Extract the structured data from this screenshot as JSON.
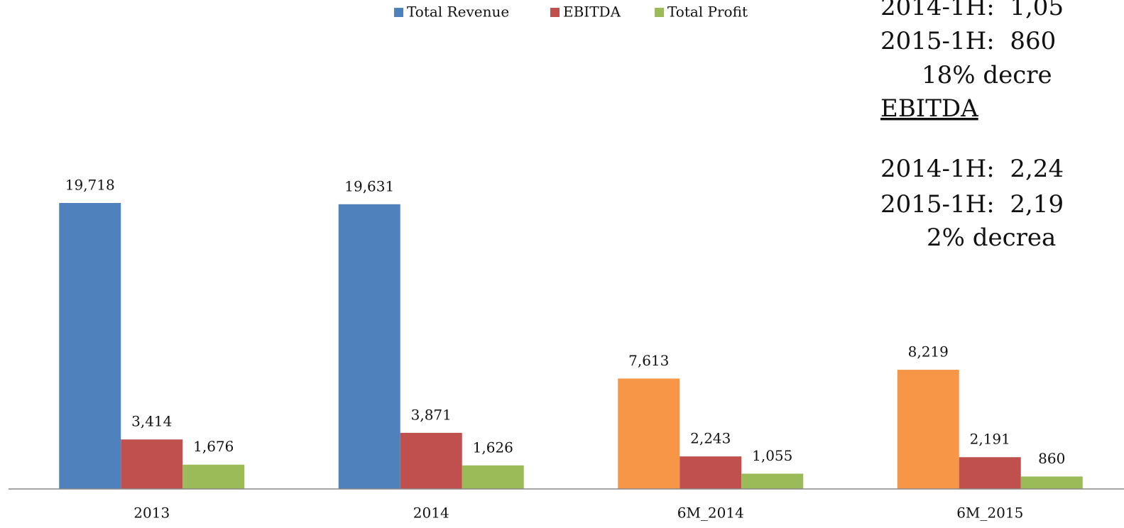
{
  "chart_data": {
    "type": "bar",
    "categories": [
      "2013",
      "2014",
      "6M_2014",
      "6M_2015"
    ],
    "series": [
      {
        "name": "Total Revenue",
        "color": "#4f81bd",
        "colors": [
          "#4f81bd",
          "#4f81bd",
          "#f79646",
          "#f79646"
        ],
        "values": [
          19718,
          19631,
          7613,
          8219
        ],
        "value_labels": [
          "19,718",
          "19,631",
          "7,613",
          "8,219"
        ]
      },
      {
        "name": "EBITDA",
        "color": "#c0504d",
        "values": [
          3414,
          3871,
          2243,
          2191
        ],
        "value_labels": [
          "3,414",
          "3,871",
          "2,243",
          "2,191"
        ]
      },
      {
        "name": "Total Profit",
        "color": "#9bbb59",
        "values": [
          1676,
          1626,
          1055,
          860
        ],
        "value_labels": [
          "1,676",
          "1,626",
          "1,055",
          "860"
        ]
      }
    ],
    "ylim": [
      0,
      24000
    ],
    "annotations": [
      "2014-1H:  1,05",
      "2015-1H:  860",
      "18% decre",
      "EBITDA",
      "2014-1H:  2,24",
      "2015-1H:  2,19",
      "2% decrea"
    ]
  }
}
